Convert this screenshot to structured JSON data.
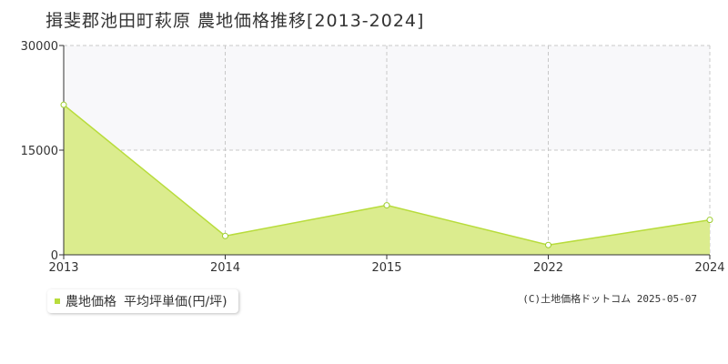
{
  "chart_data": {
    "type": "area",
    "title": "揖斐郡池田町萩原 農地価格推移[2013-2024]",
    "categories": [
      "2013",
      "2014",
      "2015",
      "2022",
      "2024"
    ],
    "series": [
      {
        "name": "農地価格 平均坪単価(円/坪)",
        "values": [
          21500,
          2700,
          7100,
          1400,
          5000
        ]
      }
    ],
    "ylim": [
      0,
      30000
    ],
    "yticks": [
      "0",
      "15000",
      "30000"
    ],
    "grid": true,
    "colors": {
      "line": "#b8dc3c",
      "fill": "#dbec8e",
      "band": "#f8f8fa",
      "grid": "#c8c8c8",
      "marker": "#9ccc2c"
    }
  },
  "legend": {
    "label": "農地価格",
    "unit_label": "平均坪単価(円/坪)"
  },
  "credit": "(C)土地価格ドットコム 2025-05-07"
}
